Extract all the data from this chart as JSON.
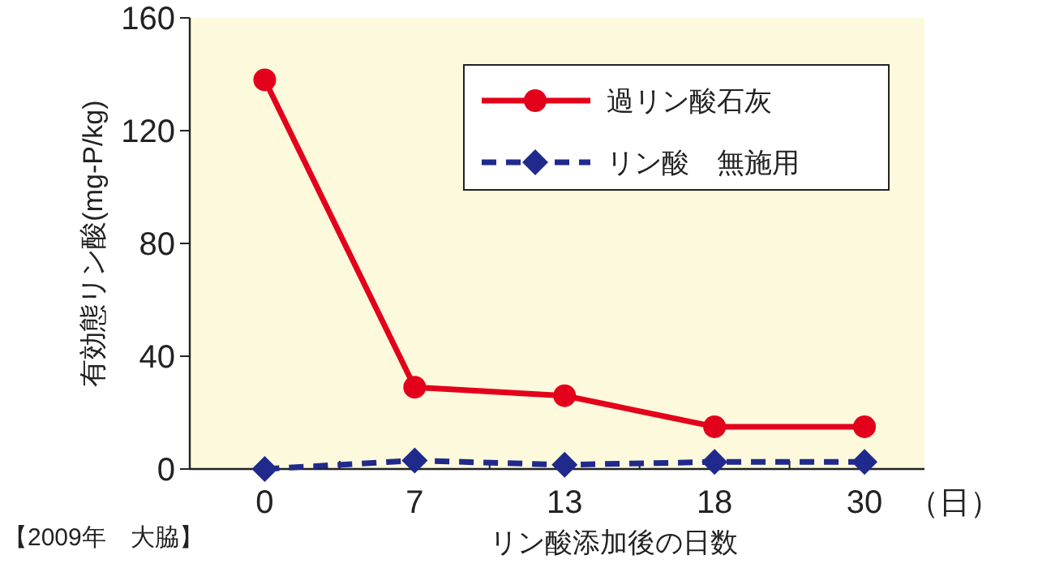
{
  "chart_data": {
    "type": "line",
    "xlabel": "リン酸添加後の日数",
    "ylabel": "有効態リン酸(mg-P/kg)",
    "categories": [
      "0",
      "7",
      "13",
      "18",
      "30"
    ],
    "series": [
      {
        "name": "過リン酸石灰",
        "color": "#e3001b",
        "values": [
          138,
          29,
          26,
          15,
          15
        ],
        "marker": "circle",
        "line_style": "solid"
      },
      {
        "name": "リン酸　無施用",
        "color": "#1f2a8c",
        "values": [
          0,
          3,
          1.5,
          2.5,
          2.5
        ],
        "marker": "diamond",
        "line_style": "dashed"
      }
    ],
    "ylim": [
      0,
      160
    ],
    "yticks": [
      0,
      40,
      80,
      120,
      160
    ],
    "grid": false,
    "legend": "top right",
    "annotations": [
      "（日）",
      "【2009年　大脇】"
    ]
  }
}
